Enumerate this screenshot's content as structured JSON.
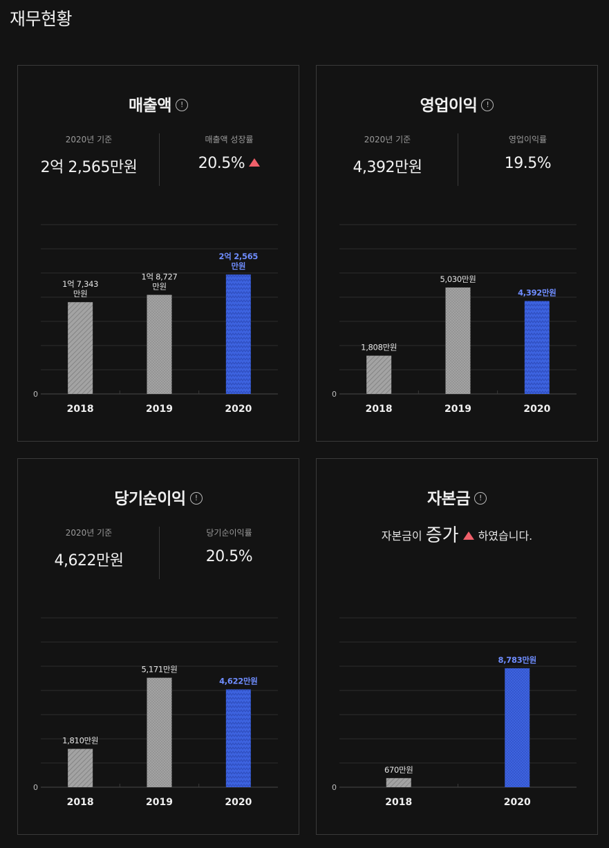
{
  "page": {
    "title": "재무현황"
  },
  "colors": {
    "blue": "#3d63e0",
    "gray": "#a3a3a3",
    "accent_label": "#6f8dff",
    "up_triangle": "#f0606a"
  },
  "cards": [
    {
      "title": "매출액",
      "stats": [
        {
          "label": "2020년 기준",
          "value": "2억 2,565만원"
        },
        {
          "label": "매출액 성장률",
          "value": "20.5%",
          "trend": "up"
        }
      ]
    },
    {
      "title": "영업이익",
      "stats": [
        {
          "label": "2020년 기준",
          "value": "4,392만원"
        },
        {
          "label": "영업이익률",
          "value": "19.5%"
        }
      ]
    },
    {
      "title": "당기순이익",
      "stats": [
        {
          "label": "2020년 기준",
          "value": "4,622만원"
        },
        {
          "label": "당기순이익률",
          "value": "20.5%"
        }
      ]
    },
    {
      "title": "자본금",
      "sentence": {
        "before": "자본금이",
        "emphasis": "증가",
        "after": "하였습니다.",
        "trend": "up"
      }
    }
  ],
  "chart_data": [
    {
      "type": "bar",
      "categories": [
        "2018",
        "2019",
        "2020"
      ],
      "values": [
        17343,
        18727,
        22565
      ],
      "value_labels": [
        [
          "1억 7,343",
          "만원"
        ],
        [
          "1억 8,727",
          "만원"
        ],
        [
          "2억 2,565",
          "만원"
        ]
      ],
      "series_patterns": [
        "diagonal",
        "dots",
        "zigzag"
      ],
      "highlight_index": 2,
      "ytick_labels": [
        "0"
      ],
      "ylim": [
        0,
        32000
      ],
      "grid": true
    },
    {
      "type": "bar",
      "categories": [
        "2018",
        "2019",
        "2020"
      ],
      "values": [
        1808,
        5030,
        4392
      ],
      "value_labels": [
        [
          "1,808만원"
        ],
        [
          "5,030만원"
        ],
        [
          "4,392만원"
        ]
      ],
      "series_patterns": [
        "diagonal",
        "dots",
        "zigzag"
      ],
      "highlight_index": 2,
      "ytick_labels": [
        "0"
      ],
      "ylim": [
        0,
        8000
      ],
      "grid": true
    },
    {
      "type": "bar",
      "categories": [
        "2018",
        "2019",
        "2020"
      ],
      "values": [
        1810,
        5171,
        4622
      ],
      "value_labels": [
        [
          "1,810만원"
        ],
        [
          "5,171만원"
        ],
        [
          "4,622만원"
        ]
      ],
      "series_patterns": [
        "diagonal",
        "dots",
        "zigzag"
      ],
      "highlight_index": 2,
      "ytick_labels": [
        "0"
      ],
      "ylim": [
        0,
        8000
      ],
      "grid": true
    },
    {
      "type": "bar",
      "categories": [
        "2018",
        "2020"
      ],
      "values": [
        670,
        8783
      ],
      "value_labels": [
        [
          "670만원"
        ],
        [
          "8,783만원"
        ]
      ],
      "series_patterns": [
        "diagonal",
        "blue-dots"
      ],
      "highlight_index": 1,
      "ytick_labels": [
        "0"
      ],
      "ylim": [
        0,
        12500
      ],
      "grid": true
    }
  ]
}
